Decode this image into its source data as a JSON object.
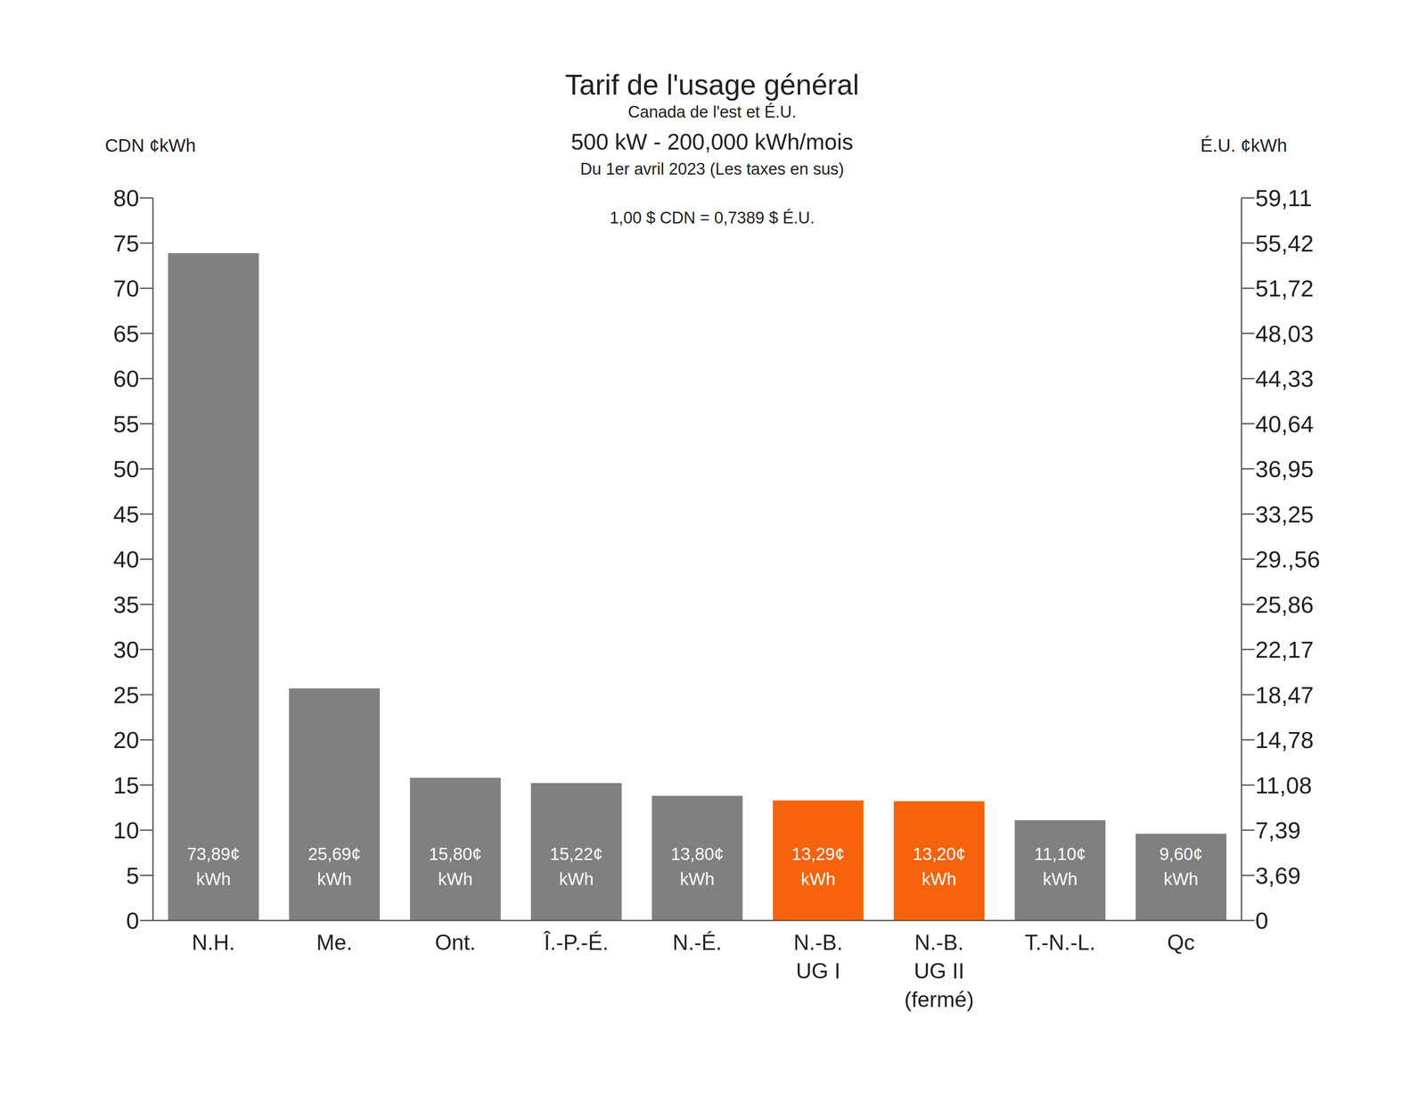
{
  "chart_data": {
    "type": "bar",
    "title": "Tarif de l'usage général",
    "subtitle": [
      "Canada de l'est et É.U.",
      "500 kW - 200,000 kWh/mois",
      "Du 1er avril 2023 (Les taxes en sus)"
    ],
    "annotation": "1,00 $ CDN = 0,7389 $ É.U.",
    "y_label": "CDN ¢kWh",
    "y2_label": "É.U. ¢kWh",
    "categories": [
      "N.H.",
      "Me.",
      "Ont.",
      "Î.-P.-É.",
      "N.-É.",
      "N.-B.\nUG I",
      "N.-B.\nUG II\n(fermé)",
      "T.-N.-L.",
      "Qc"
    ],
    "values": [
      73.89,
      25.69,
      15.8,
      15.22,
      13.8,
      13.29,
      13.2,
      11.1,
      9.6
    ],
    "value_labels": [
      "73,89¢\nkWh",
      "25,69¢\nkWh",
      "15,80¢\nkWh",
      "15,22¢\nkWh",
      "13,80¢\nkWh",
      "13,29¢\nkWh",
      "13,20¢\nkWh",
      "11,10¢\nkWh",
      "9,60¢\nkWh"
    ],
    "colors": [
      "#808080",
      "#808080",
      "#808080",
      "#808080",
      "#808080",
      "#f7630c",
      "#f7630c",
      "#808080",
      "#808080"
    ],
    "data_labels": true,
    "grid": false,
    "ylim": [
      0,
      80
    ],
    "yticks": [
      0,
      5,
      10,
      15,
      20,
      25,
      30,
      35,
      40,
      45,
      50,
      55,
      60,
      65,
      70,
      75,
      80
    ],
    "y2lim": [
      0,
      59.11
    ],
    "y2ticks": [
      0,
      {
        "value": 3.69,
        "label": "3,69"
      },
      {
        "value": 7.39,
        "label": "7,39"
      },
      {
        "value": 11.08,
        "label": "11,08"
      },
      {
        "value": 14.78,
        "label": "14,78"
      },
      {
        "value": 18.47,
        "label": "18,47"
      },
      {
        "value": 22.17,
        "label": "22,17"
      },
      {
        "value": 25.86,
        "label": "25,86"
      },
      {
        "value": 29.56,
        "label": "29.,56"
      },
      {
        "value": 33.25,
        "label": "33,25"
      },
      {
        "value": 36.95,
        "label": "36,95"
      },
      {
        "value": 40.64,
        "label": "40,64"
      },
      {
        "value": 44.33,
        "label": "44,33"
      },
      {
        "value": 48.03,
        "label": "48,03"
      },
      {
        "value": 51.72,
        "label": "51,72"
      },
      {
        "value": 55.42,
        "label": "55,42"
      },
      {
        "value": 59.11,
        "label": "59,11"
      }
    ]
  }
}
